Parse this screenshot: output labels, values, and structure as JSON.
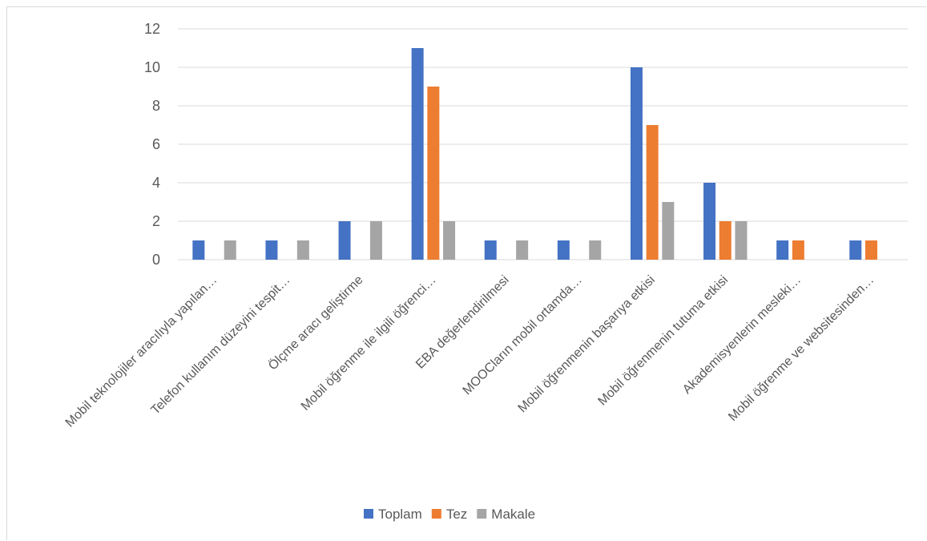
{
  "chart_data": {
    "type": "bar",
    "categories": [
      "Mobil teknolojiler aracılıyla yapılan…",
      "Telefon kullanım düzeyini tespit…",
      "Ölçme aracı geliştirme",
      "Mobil öğrenme ile ilgili öğrenci…",
      "EBA değerlendirilmesi",
      "MOOCların mobil ortamda…",
      "Mobil öğrenmenin başarıya etkisi",
      "Mobil öğrenmenin tutuma etkisi",
      "Akademisyenlerin mesleki…",
      "Mobil öğrenme ve websitesinden…"
    ],
    "series": [
      {
        "name": "Toplam",
        "values": [
          1,
          1,
          2,
          11,
          1,
          1,
          10,
          4,
          1,
          1
        ]
      },
      {
        "name": "Tez",
        "values": [
          0,
          0,
          0,
          9,
          0,
          0,
          7,
          2,
          1,
          1
        ]
      },
      {
        "name": "Makale",
        "values": [
          1,
          1,
          2,
          2,
          1,
          1,
          3,
          2,
          0,
          0
        ]
      }
    ],
    "ylim": [
      0,
      12
    ],
    "yticks": [
      0,
      2,
      4,
      6,
      8,
      10,
      12
    ],
    "grid": true,
    "legend_position": "bottom",
    "colors": [
      "#4472c4",
      "#ed7d31",
      "#a5a5a5"
    ]
  }
}
